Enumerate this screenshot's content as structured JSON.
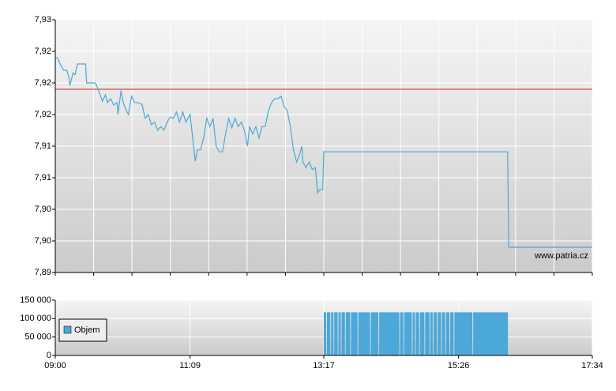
{
  "chart_data": [
    {
      "type": "line",
      "annotation": "www.patria.cz",
      "xlim": [
        "09:00",
        "17:34"
      ],
      "ylim": [
        7.89,
        7.93
      ],
      "yticks": [
        {
          "value": 7.89,
          "label": "7,89"
        },
        {
          "value": 7.895,
          "label": "7,90"
        },
        {
          "value": 7.9,
          "label": "7,90"
        },
        {
          "value": 7.905,
          "label": "7,91"
        },
        {
          "value": 7.91,
          "label": "7,91"
        },
        {
          "value": 7.915,
          "label": "7,92"
        },
        {
          "value": 7.92,
          "label": "7,92"
        },
        {
          "value": 7.925,
          "label": "7,92"
        },
        {
          "value": 7.93,
          "label": "7,93"
        }
      ],
      "reference_line": {
        "value": 7.919,
        "color": "#cc2222"
      },
      "x": [
        "09:00",
        "09:02",
        "09:05",
        "09:08",
        "09:11",
        "09:13",
        "09:14",
        "09:17",
        "09:19",
        "09:21",
        "09:23",
        "09:26",
        "09:29",
        "09:30",
        "09:33",
        "09:38",
        "09:39",
        "09:41",
        "09:43",
        "09:45",
        "09:48",
        "09:50",
        "09:53",
        "09:56",
        "09:59",
        "10:00",
        "10:03",
        "10:05",
        "10:08",
        "10:10",
        "10:13",
        "10:16",
        "10:19",
        "10:23",
        "10:26",
        "10:29",
        "10:32",
        "10:35",
        "10:38",
        "10:41",
        "10:44",
        "10:47",
        "10:50",
        "10:53",
        "10:56",
        "10:59",
        "11:02",
        "11:05",
        "11:09",
        "11:12",
        "11:14",
        "11:16",
        "11:19",
        "11:22",
        "11:25",
        "11:28",
        "11:31",
        "11:34",
        "11:37",
        "11:40",
        "11:43",
        "11:46",
        "11:49",
        "11:52",
        "11:55",
        "11:58",
        "12:01",
        "12:04",
        "12:06",
        "12:09",
        "12:12",
        "12:15",
        "12:18",
        "12:21",
        "12:24",
        "12:27",
        "12:30",
        "12:33",
        "12:36",
        "12:39",
        "12:42",
        "12:45",
        "12:48",
        "12:51",
        "12:54",
        "12:56",
        "12:57",
        "13:00",
        "13:03",
        "13:06",
        "13:09",
        "13:11",
        "13:13",
        "13:16",
        "13:17",
        "16:13",
        "16:14",
        "17:34"
      ],
      "series": [
        {
          "color": "#4ba8d8",
          "values": [
            7.924,
            7.924,
            7.9229,
            7.922,
            7.922,
            7.9209,
            7.9196,
            7.9216,
            7.9213,
            7.923,
            7.923,
            7.923,
            7.923,
            7.92,
            7.92,
            7.92,
            7.9198,
            7.919,
            7.9181,
            7.9171,
            7.9181,
            7.9169,
            7.9175,
            7.9165,
            7.9169,
            7.915,
            7.9188,
            7.9169,
            7.9156,
            7.915,
            7.9179,
            7.9169,
            7.9169,
            7.9166,
            7.9144,
            7.915,
            7.9134,
            7.9138,
            7.9125,
            7.9131,
            7.9125,
            7.9138,
            7.9146,
            7.9144,
            7.9154,
            7.9138,
            7.9154,
            7.9138,
            7.915,
            7.9106,
            7.9076,
            7.9094,
            7.9094,
            7.9113,
            7.9144,
            7.9131,
            7.9144,
            7.91,
            7.9091,
            7.9091,
            7.9119,
            7.9144,
            7.9129,
            7.9144,
            7.9131,
            7.9138,
            7.9125,
            7.91,
            7.9131,
            7.9119,
            7.9131,
            7.9113,
            7.9131,
            7.9131,
            7.9156,
            7.9169,
            7.9175,
            7.9175,
            7.9179,
            7.9163,
            7.9156,
            7.9131,
            7.9094,
            7.9075,
            7.9088,
            7.91,
            7.9075,
            7.9066,
            7.9075,
            7.9063,
            7.9066,
            7.9026,
            7.9031,
            7.9031,
            7.9091,
            7.9091,
            7.894,
            7.894
          ]
        }
      ]
    },
    {
      "type": "bar",
      "xlim": [
        "09:00",
        "17:34"
      ],
      "xticks": [
        "09:00",
        "11:09",
        "13:17",
        "15:26",
        "17:34"
      ],
      "ylim": [
        0,
        150000
      ],
      "yticks": [
        0,
        {
          "value": 50000,
          "label": "50 000"
        },
        {
          "value": 100000,
          "label": "100 000"
        },
        {
          "value": 150000,
          "label": "150 000"
        }
      ],
      "x": [
        "13:17",
        "13:20",
        "13:24",
        "13:27",
        "13:31",
        "13:34",
        "13:38",
        "13:43",
        "13:50",
        "14:02",
        "14:10",
        "14:30",
        "14:34",
        "14:42",
        "14:45",
        "14:49",
        "14:54",
        "14:59",
        "15:02",
        "15:06",
        "15:10",
        "15:14",
        "15:18",
        "15:22",
        "15:40",
        "16:14"
      ],
      "series": [
        {
          "name": "Objem",
          "color": "#4ba8d8",
          "values": [
            117000,
            117000,
            117000,
            117000,
            117000,
            117000,
            117000,
            117000,
            117000,
            117000,
            117000,
            117000,
            117000,
            117000,
            117000,
            117000,
            117000,
            117000,
            117000,
            117000,
            117000,
            117000,
            117000,
            117000,
            117000,
            1500
          ]
        }
      ]
    }
  ]
}
